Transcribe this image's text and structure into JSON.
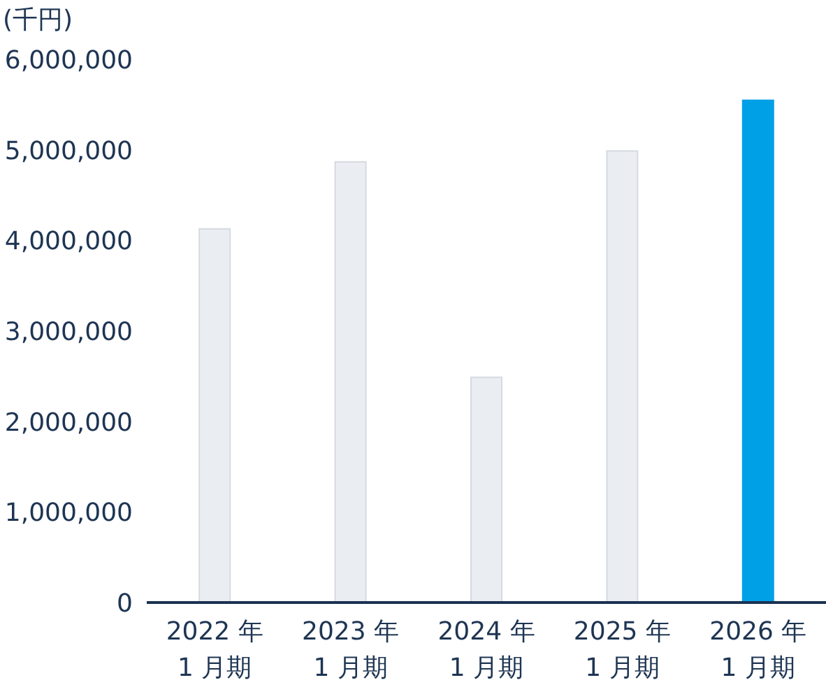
{
  "chart_data": {
    "type": "bar",
    "ylabel": "(千円)",
    "categories": [
      "2022 年 1 月期",
      "2023 年 1 月期",
      "2024 年 1 月期",
      "2025 年 1 月期",
      "2026 年 1 月期"
    ],
    "values": [
      4120000,
      4860000,
      2480000,
      4980000,
      5540000
    ],
    "colors": [
      "#eaedf2",
      "#eaedf2",
      "#eaedf2",
      "#eaedf2",
      "#00a0e6"
    ],
    "ylim": [
      0,
      6000000
    ],
    "yticks": [
      {
        "value": 0,
        "label": "0"
      },
      {
        "value": 1000000,
        "label": "1,000,000"
      },
      {
        "value": 2000000,
        "label": "2,000,000"
      },
      {
        "value": 3000000,
        "label": "3,000,000"
      },
      {
        "value": 4000000,
        "label": "4,000,000"
      },
      {
        "value": 5000000,
        "label": "5,000,000"
      },
      {
        "value": 6000000,
        "label": "6,000,000"
      }
    ],
    "grid": false
  }
}
